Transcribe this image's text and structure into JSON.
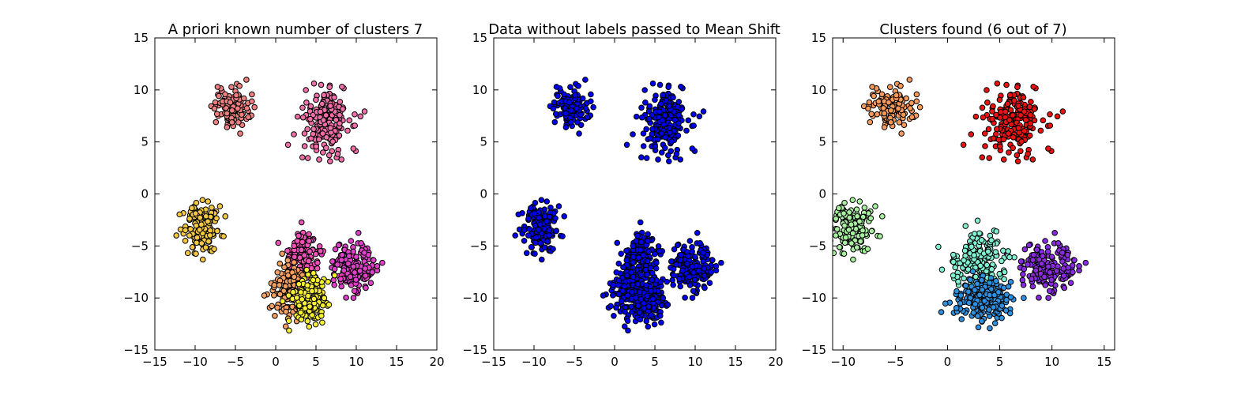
{
  "figure": {
    "background": "#ffffff"
  },
  "chart_data": [
    {
      "type": "scatter",
      "title": "A priori known number of clusters 7",
      "xlabel": "",
      "ylabel": "",
      "xlim": [
        -15,
        20
      ],
      "ylim": [
        -15,
        15
      ],
      "xticks": [
        -15,
        -10,
        -5,
        0,
        5,
        10,
        15,
        20
      ],
      "yticks": [
        -15,
        -10,
        -5,
        0,
        5,
        10,
        15
      ],
      "tick_labels_x": [
        "−15",
        "−10",
        "−5",
        "0",
        "5",
        "10",
        "15",
        "20"
      ],
      "tick_labels_y": [
        "−15",
        "−10",
        "−5",
        "0",
        "5",
        "10",
        "15"
      ],
      "grid": false,
      "marker_edge_color": "#000000",
      "clusters": [
        {
          "center": [
            -5.5,
            8.3
          ],
          "spread": [
            1.1,
            1.0
          ],
          "count": 120,
          "color": "#f08080"
        },
        {
          "center": [
            6.2,
            7.0
          ],
          "spread": [
            1.5,
            1.6
          ],
          "count": 200,
          "color": "#f06fa8"
        },
        {
          "center": [
            -9.2,
            -3.1
          ],
          "spread": [
            1.1,
            1.2
          ],
          "count": 150,
          "color": "#f5c842"
        },
        {
          "center": [
            9.8,
            -6.8
          ],
          "spread": [
            1.4,
            1.2
          ],
          "count": 170,
          "color": "#e040c8"
        },
        {
          "center": [
            3.3,
            -5.9
          ],
          "spread": [
            1.0,
            1.1
          ],
          "count": 130,
          "color": "#f050b8"
        },
        {
          "center": [
            1.8,
            -9.2
          ],
          "spread": [
            1.1,
            1.3
          ],
          "count": 140,
          "color": "#f5a060"
        },
        {
          "center": [
            4.3,
            -10.2
          ],
          "spread": [
            1.1,
            1.1
          ],
          "count": 150,
          "color": "#f7f030"
        }
      ]
    },
    {
      "type": "scatter",
      "title": "Data without labels passed to Mean Shift",
      "xlabel": "",
      "ylabel": "",
      "xlim": [
        -15,
        20
      ],
      "ylim": [
        -15,
        15
      ],
      "xticks": [
        -15,
        -10,
        -5,
        0,
        5,
        10,
        15,
        20
      ],
      "yticks": [
        -15,
        -10,
        -5,
        0,
        5,
        10,
        15
      ],
      "tick_labels_x": [
        "−15",
        "−10",
        "−5",
        "0",
        "5",
        "10",
        "15",
        "20"
      ],
      "tick_labels_y": [
        "−15",
        "−10",
        "−5",
        "0",
        "5",
        "10",
        "15"
      ],
      "grid": false,
      "marker_edge_color": "#000000",
      "clusters": [
        {
          "center": [
            -5.5,
            8.3
          ],
          "spread": [
            1.1,
            1.0
          ],
          "count": 120,
          "color": "#0000ee"
        },
        {
          "center": [
            6.2,
            7.0
          ],
          "spread": [
            1.5,
            1.6
          ],
          "count": 200,
          "color": "#0000ee"
        },
        {
          "center": [
            -9.2,
            -3.1
          ],
          "spread": [
            1.1,
            1.2
          ],
          "count": 150,
          "color": "#0000ee"
        },
        {
          "center": [
            9.8,
            -6.8
          ],
          "spread": [
            1.4,
            1.2
          ],
          "count": 170,
          "color": "#0000ee"
        },
        {
          "center": [
            3.3,
            -5.9
          ],
          "spread": [
            1.0,
            1.1
          ],
          "count": 130,
          "color": "#0000ee"
        },
        {
          "center": [
            1.8,
            -9.2
          ],
          "spread": [
            1.1,
            1.3
          ],
          "count": 140,
          "color": "#0000ee"
        },
        {
          "center": [
            4.3,
            -10.2
          ],
          "spread": [
            1.1,
            1.1
          ],
          "count": 150,
          "color": "#0000ee"
        }
      ]
    },
    {
      "type": "scatter",
      "title": "Clusters found (6 out of 7)",
      "xlabel": "",
      "ylabel": "",
      "xlim": [
        -11,
        16
      ],
      "ylim": [
        -15,
        15
      ],
      "xticks": [
        -10,
        -5,
        0,
        5,
        10,
        15
      ],
      "yticks": [
        -15,
        -10,
        -5,
        0,
        5,
        10,
        15
      ],
      "tick_labels_x": [
        "−10",
        "−5",
        "0",
        "5",
        "10",
        "15"
      ],
      "tick_labels_y": [
        "−15",
        "−10",
        "−5",
        "0",
        "5",
        "10",
        "15"
      ],
      "grid": false,
      "marker_edge_color": "#000000",
      "clusters": [
        {
          "center": [
            -5.5,
            8.3
          ],
          "spread": [
            1.1,
            1.0
          ],
          "count": 120,
          "color": "#f79a5a"
        },
        {
          "center": [
            6.2,
            7.0
          ],
          "spread": [
            1.5,
            1.6
          ],
          "count": 200,
          "color": "#ee1111"
        },
        {
          "center": [
            -9.2,
            -3.1
          ],
          "spread": [
            1.1,
            1.2
          ],
          "count": 150,
          "color": "#a8f0a0"
        },
        {
          "center": [
            9.8,
            -6.8
          ],
          "spread": [
            1.4,
            1.2
          ],
          "count": 170,
          "color": "#8a2be2"
        },
        {
          "center": [
            3.0,
            -6.6
          ],
          "spread": [
            1.3,
            1.4
          ],
          "count": 190,
          "color": "#7ff0d0"
        },
        {
          "center": [
            3.6,
            -10.1
          ],
          "spread": [
            1.3,
            1.0
          ],
          "count": 200,
          "color": "#2e90e0"
        }
      ]
    }
  ]
}
